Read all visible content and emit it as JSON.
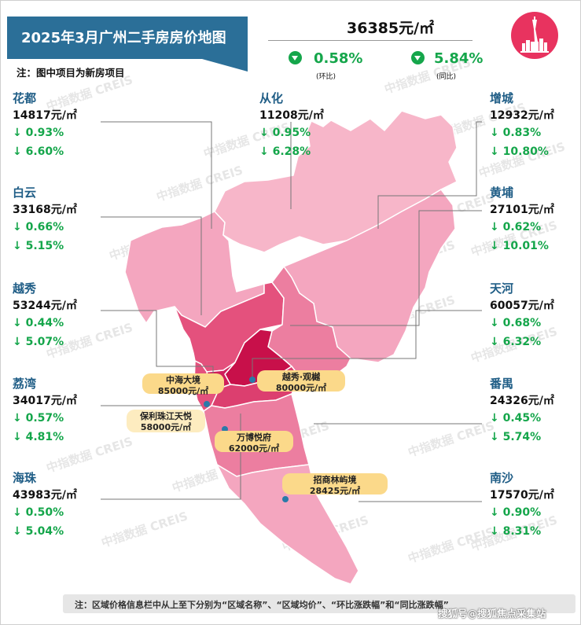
{
  "header": {
    "title": "2025年3月广州二手房房价地图",
    "note": "注：图中项目为新房项目"
  },
  "city_summary": {
    "avg_price": "36385元/㎡",
    "mom_change": "0.58%",
    "mom_label": "(环比)",
    "yoy_change": "5.84%",
    "yoy_label": "(同比)",
    "icon": "down-triangle-icon"
  },
  "logo": {
    "icon": "canton-tower-icon",
    "color": "#e8335f"
  },
  "districts": [
    {
      "name": "花都",
      "price": "14817元/㎡",
      "mom": "↓ 0.93%",
      "yoy": "↓ 6.60%",
      "color": "#f4a6bf"
    },
    {
      "name": "从化",
      "price": "11208元/㎡",
      "mom": "↓ 0.95%",
      "yoy": "↓ 6.28%",
      "color": "#f7b6c9"
    },
    {
      "name": "增城",
      "price": "12932元/㎡",
      "mom": "↓ 0.83%",
      "yoy": "↓ 10.80%",
      "color": "#f4a6bf"
    },
    {
      "name": "白云",
      "price": "33168元/㎡",
      "mom": "↓ 0.66%",
      "yoy": "↓ 5.15%",
      "color": "#e4517d"
    },
    {
      "name": "黄埔",
      "price": "27101元/㎡",
      "mom": "↓ 0.62%",
      "yoy": "↓ 10.01%",
      "color": "#ec7ea0"
    },
    {
      "name": "越秀",
      "price": "53244元/㎡",
      "mom": "↓ 0.44%",
      "yoy": "↓ 5.07%",
      "color": "#cf1f5a"
    },
    {
      "name": "天河",
      "price": "60057元/㎡",
      "mom": "↓ 0.68%",
      "yoy": "↓ 6.32%",
      "color": "#c8104a"
    },
    {
      "name": "荔湾",
      "price": "34017元/㎡",
      "mom": "↓ 0.57%",
      "yoy": "↓ 4.81%",
      "color": "#e4517d"
    },
    {
      "name": "番禺",
      "price": "24326元/㎡",
      "mom": "↓ 0.45%",
      "yoy": "↓ 5.74%",
      "color": "#ec7ea0"
    },
    {
      "name": "海珠",
      "price": "43983元/㎡",
      "mom": "↓ 0.50%",
      "yoy": "↓ 5.04%",
      "color": "#dc3f6f"
    },
    {
      "name": "南沙",
      "price": "17570元/㎡",
      "mom": "↓ 0.90%",
      "yoy": "↓ 8.31%",
      "color": "#f4a6bf"
    }
  ],
  "projects": [
    {
      "name": "中海大境",
      "price": "85000元/㎡"
    },
    {
      "name": "越秀·观樾",
      "price": "80000元/㎡"
    },
    {
      "name": "保利珠江天悦",
      "price": "58000元/㎡"
    },
    {
      "name": "万博悦府",
      "price": "62000元/㎡"
    },
    {
      "name": "招商林屿境",
      "price": "28425元/㎡"
    }
  ],
  "watermark": "中指数据 CREIS",
  "footer": {
    "note": "注：区域价格信息栏中从上至下分别为“区域名称”、“区域均价”、“环比涨跌幅”和“同比涨跌幅”",
    "credit": "搜狐号@搜狐焦点采集站"
  }
}
